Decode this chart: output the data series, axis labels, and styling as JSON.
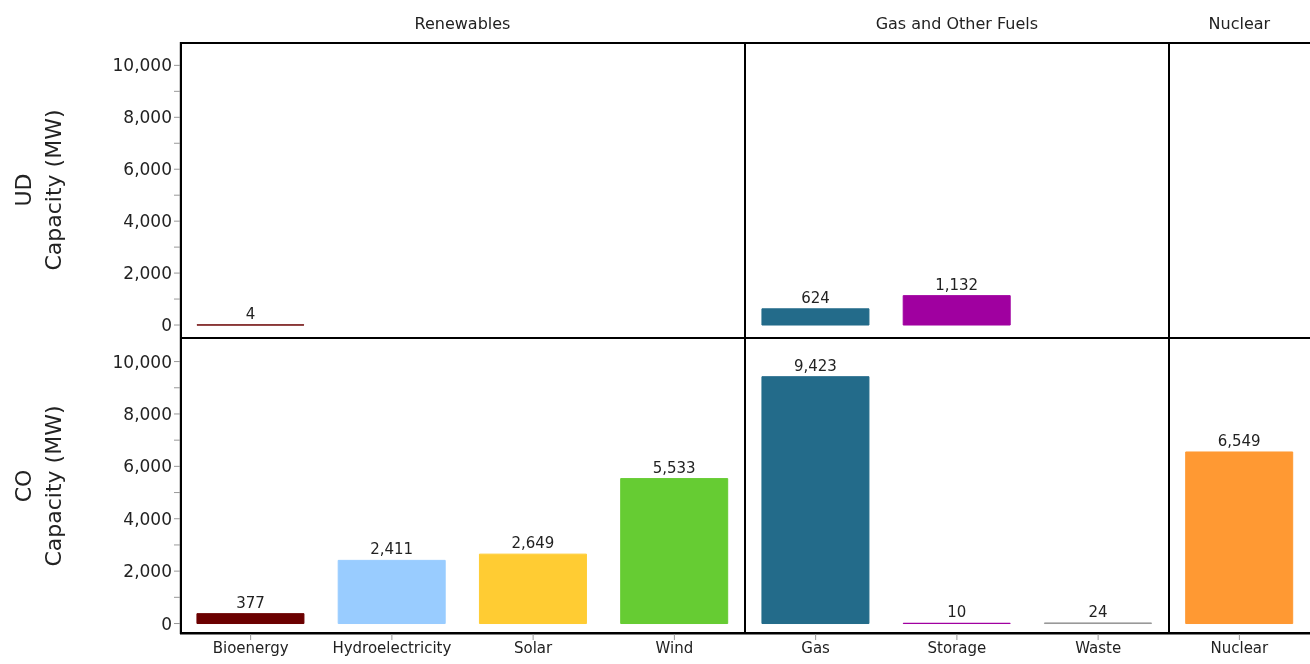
{
  "chart_data": [
    {
      "type": "bar",
      "ylabel": "UD\nCapacity (MW)",
      "annotations": [
        "Renewables",
        "Gas and Other Fuels",
        "Nuclear"
      ],
      "categories": [
        null,
        null,
        null,
        null,
        null,
        null,
        null,
        null
      ],
      "values": [
        4,
        null,
        null,
        null,
        624,
        1132,
        null,
        null
      ],
      "value_labels": [
        "4",
        null,
        null,
        null,
        "624",
        "1,132",
        null,
        null
      ],
      "colors": [
        "#6b0000",
        "#99ccff",
        "#ffcc33",
        "#66cc33",
        "#236b8a",
        "#a000a0",
        "#999999",
        "#ff9933"
      ],
      "ylim": [
        -500,
        10900
      ],
      "yticks": [
        0,
        {
          "value": 1000,
          "label": null
        },
        {
          "value": 2000,
          "label": "2,000"
        },
        {
          "value": 3000,
          "label": null
        },
        {
          "value": 4000,
          "label": "4,000"
        },
        {
          "value": 5000,
          "label": null
        },
        {
          "value": 6000,
          "label": "6,000"
        },
        {
          "value": 7000,
          "label": null
        },
        {
          "value": 8000,
          "label": "8,000"
        },
        {
          "value": 9000,
          "label": null
        },
        {
          "value": 10000,
          "label": "10,000"
        }
      ],
      "tick_labels": "y"
    },
    {
      "type": "bar",
      "ylabel": "CO\nCapacity (MW)",
      "categories": [
        "Bioenergy",
        "Hydroelectricity",
        "Solar",
        "Wind",
        "Gas",
        "Storage",
        "Waste",
        "Nuclear"
      ],
      "values": [
        377,
        2411,
        2649,
        5533,
        9423,
        10,
        24,
        6549
      ],
      "value_labels": [
        "377",
        "2,411",
        "2,649",
        "5,533",
        "9,423",
        "10",
        "24",
        "6,549"
      ],
      "colors": [
        "#6b0000",
        "#99ccff",
        "#ffcc33",
        "#66cc33",
        "#236b8a",
        "#a000a0",
        "#999999",
        "#ff9933"
      ],
      "ylim": [
        -400,
        10900
      ],
      "yticks": [
        0,
        {
          "value": 1000,
          "label": null
        },
        {
          "value": 2000,
          "label": "2,000"
        },
        {
          "value": 3000,
          "label": null
        },
        {
          "value": 4000,
          "label": "4,000"
        },
        {
          "value": 5000,
          "label": null
        },
        {
          "value": 6000,
          "label": "6,000"
        },
        {
          "value": 7000,
          "label": null
        },
        {
          "value": 8000,
          "label": "8,000"
        },
        {
          "value": 9000,
          "label": null
        },
        {
          "value": 10000,
          "label": "10,000"
        }
      ]
    }
  ]
}
